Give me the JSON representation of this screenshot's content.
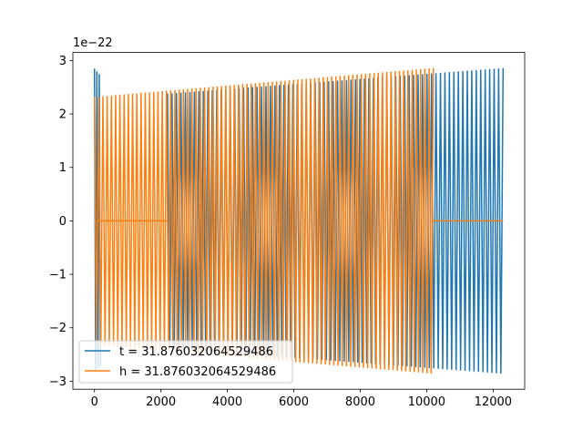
{
  "chart_data": {
    "type": "line",
    "title": "",
    "xlabel": "",
    "ylabel": "",
    "offset_label": "1e−22",
    "xlim": [
      -650,
      12950
    ],
    "ylim": [
      -3.15,
      3.15
    ],
    "x_ticks": [
      0,
      2000,
      4000,
      6000,
      8000,
      10000,
      12000
    ],
    "x_tick_labels": [
      "0",
      "2000",
      "4000",
      "6000",
      "8000",
      "10000",
      "12000"
    ],
    "y_ticks": [
      -3,
      -2,
      -1,
      0,
      1,
      2,
      3
    ],
    "y_tick_labels": [
      "−3",
      "−2",
      "−1",
      "0",
      "1",
      "2",
      "3"
    ],
    "grid": false,
    "legend_location": "lower left",
    "series": [
      {
        "name": "t = 31.876032064529486",
        "color": "#1f77b4",
        "segments": [
          {
            "x_start": 0,
            "x_end": 180,
            "amp_start": 2.85,
            "amp_end": 2.72,
            "cycles": 2.5
          },
          {
            "x_start": 2200,
            "x_end": 12300,
            "amp_start": 2.38,
            "amp_end": 2.86,
            "cycles": 75
          }
        ]
      },
      {
        "name": "h = 31.876032064529486",
        "color": "#ff7f0e",
        "segments": [
          {
            "x_start": 0,
            "x_end": 10200,
            "amp_start": 2.32,
            "amp_end": 2.86,
            "cycles": 80
          },
          {
            "x_start": 120,
            "x_end": 2200,
            "flat": 0
          },
          {
            "x_start": 10200,
            "x_end": 12300,
            "flat": 0
          }
        ]
      }
    ]
  }
}
